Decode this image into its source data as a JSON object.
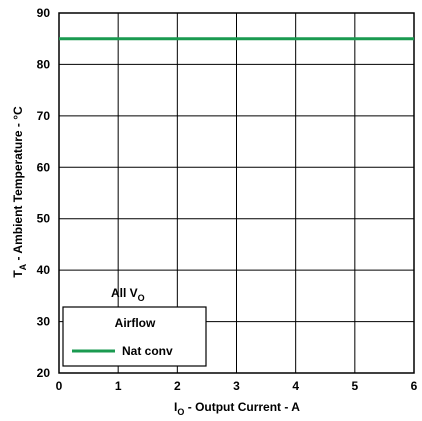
{
  "chart_data": {
    "type": "line",
    "xlabel_main": "I",
    "xlabel_sub": "O",
    "xlabel_rest": " - Output Current - A",
    "ylabel_main": "T",
    "ylabel_sub": "A",
    "ylabel_rest": " - Ambient Temperature - °C",
    "xlim": [
      0,
      6
    ],
    "ylim": [
      20,
      90
    ],
    "x_ticks": [
      "0",
      "1",
      "2",
      "3",
      "4",
      "5",
      "6"
    ],
    "y_ticks": [
      "20",
      "30",
      "40",
      "50",
      "60",
      "70",
      "80",
      "90"
    ],
    "grid": true,
    "series": [
      {
        "name": "Nat conv",
        "color": "#1a9a50",
        "x": [
          0,
          6
        ],
        "y": [
          85,
          85
        ]
      }
    ],
    "annotation_main": "All V",
    "annotation_sub": "O",
    "legend": {
      "title": "Airflow",
      "placement": "bottom-left"
    }
  }
}
